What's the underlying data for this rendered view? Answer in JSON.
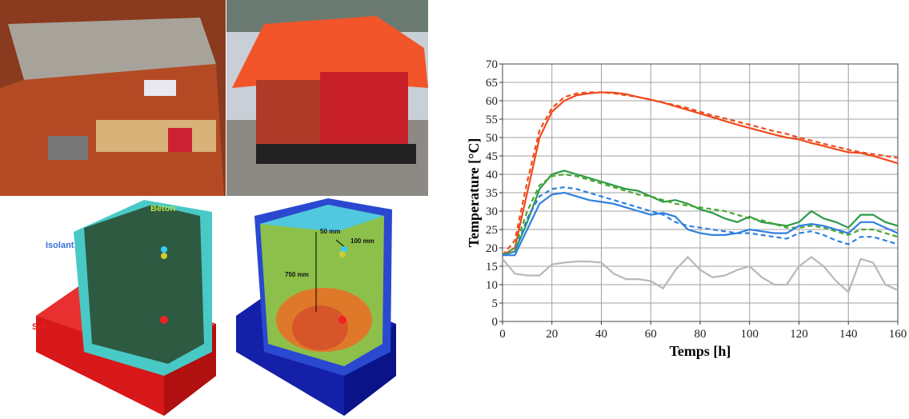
{
  "figure_labels": {
    "concrete": "Béton",
    "insulation": "Isolant",
    "soil": "Sol",
    "depth_top": "50 mm",
    "depth_side": "100 mm",
    "depth_center": "750 mm"
  },
  "chart_data": {
    "type": "line",
    "x_label": "Temps [h]",
    "y_label": "Temperature [°C]",
    "xlim": [
      0,
      160
    ],
    "xticks": [
      0,
      20,
      40,
      60,
      80,
      100,
      120,
      140,
      160
    ],
    "ylim": [
      0,
      70
    ],
    "yticks": [
      0,
      5,
      10,
      15,
      20,
      25,
      30,
      35,
      40,
      45,
      50,
      55,
      60,
      65,
      70
    ],
    "grid": true,
    "x": [
      0,
      5,
      10,
      15,
      20,
      25,
      30,
      35,
      40,
      45,
      50,
      55,
      60,
      65,
      70,
      75,
      80,
      85,
      90,
      95,
      100,
      105,
      110,
      115,
      120,
      125,
      130,
      135,
      140,
      145,
      150,
      155,
      160
    ],
    "series": [
      {
        "color": "#f04a1c",
        "dashed": false,
        "values": [
          18,
          20,
          35,
          50,
          57,
          60,
          61.5,
          62,
          62.3,
          62.2,
          61.8,
          61,
          60.3,
          59.5,
          58.5,
          57.5,
          56.5,
          55.5,
          54.5,
          53.5,
          52.6,
          51.7,
          50.8,
          50,
          49.5,
          48.5,
          47.7,
          46.8,
          46,
          45.8,
          45,
          44,
          43
        ]
      },
      {
        "color": "#f04a1c",
        "dashed": true,
        "values": [
          18,
          22,
          38,
          52,
          58,
          61,
          62,
          62.3,
          62.3,
          62,
          61.5,
          61,
          60.3,
          59.5,
          58.8,
          58,
          57,
          56,
          55.2,
          54.3,
          53.5,
          52.6,
          51.7,
          51,
          50,
          49.2,
          48.3,
          47.5,
          46.7,
          46,
          45.5,
          45,
          44.5
        ]
      },
      {
        "color": "#2e9a47",
        "dashed": false,
        "values": [
          18,
          19,
          27,
          36,
          40,
          41,
          40,
          39,
          38,
          37,
          36,
          35.5,
          34,
          32.5,
          33,
          32,
          30.5,
          29.5,
          28,
          27,
          28.5,
          27,
          26.5,
          26,
          27,
          30,
          28,
          27,
          25.5,
          29,
          29,
          27,
          26
        ]
      },
      {
        "color": "#4aa82c",
        "dashed": true,
        "values": [
          18,
          20,
          30,
          37,
          39.5,
          40,
          39.5,
          38.5,
          37.5,
          36.5,
          35.5,
          34.5,
          34,
          33,
          32,
          31.5,
          31,
          30.5,
          30,
          29,
          28,
          27.5,
          26.5,
          25.5,
          25.5,
          26,
          25.5,
          24.5,
          23.5,
          25,
          25,
          24,
          23
        ]
      },
      {
        "color": "#2f80e0",
        "dashed": false,
        "values": [
          18,
          18,
          25,
          32,
          34.5,
          35,
          34,
          33,
          32.5,
          32,
          31,
          30,
          29,
          29.5,
          28.5,
          25,
          24,
          23.5,
          23.5,
          24,
          25,
          24.5,
          24,
          24,
          26,
          26.5,
          26,
          25,
          24,
          27,
          27,
          25.5,
          24
        ]
      },
      {
        "color": "#2f80e0",
        "dashed": true,
        "values": [
          18,
          19,
          28,
          34,
          36,
          36.5,
          36,
          35,
          34,
          33,
          32,
          31,
          30,
          29,
          27,
          26,
          25.5,
          25,
          24.5,
          24,
          24,
          23.5,
          23,
          22.5,
          24,
          24.5,
          23.5,
          22,
          21,
          23,
          23,
          22,
          21
        ]
      },
      {
        "color": "#b8b8b8",
        "dashed": false,
        "values": [
          17,
          13,
          12.5,
          12.5,
          15.5,
          16,
          16.3,
          16.3,
          16,
          13,
          11.5,
          11.5,
          11,
          9,
          14,
          17.5,
          14,
          12,
          12.5,
          14,
          15,
          12,
          10,
          10,
          15,
          17.5,
          15,
          11,
          8,
          17,
          16,
          10,
          8.5
        ]
      }
    ]
  }
}
